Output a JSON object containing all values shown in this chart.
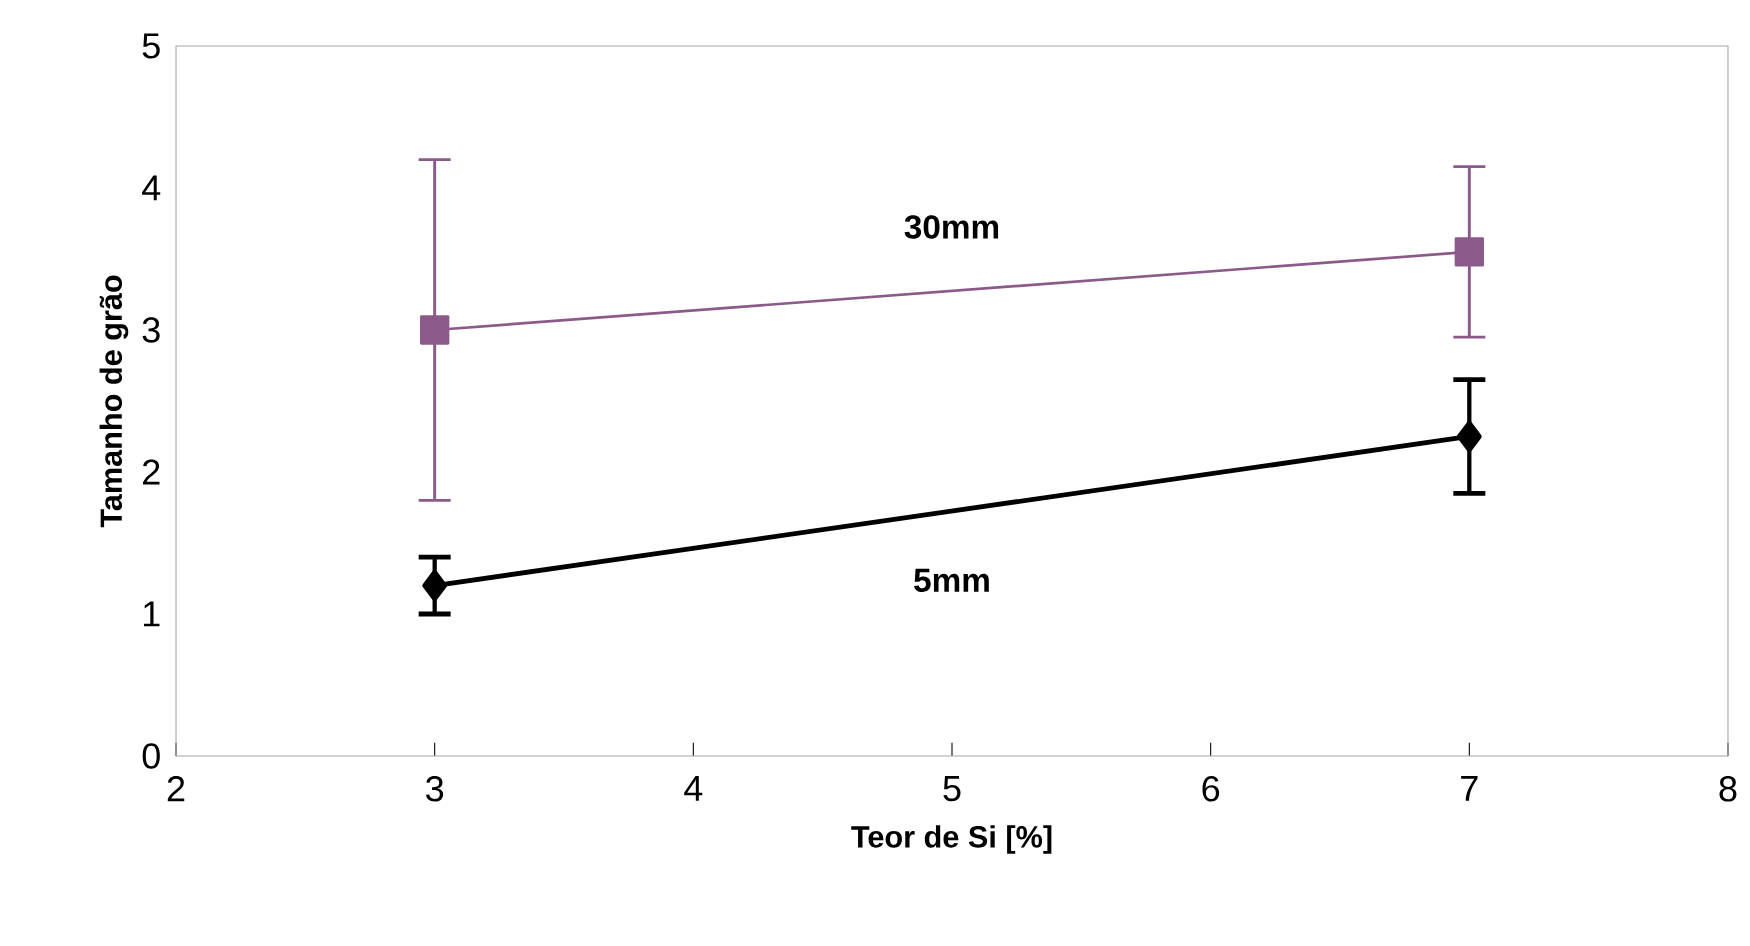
{
  "chart_data": {
    "type": "line",
    "xlabel": "Teor de Si [%]",
    "ylabel": "Tamanho de grão",
    "x": [
      3,
      7
    ],
    "xlim": [
      2,
      8
    ],
    "xticks": [
      2,
      3,
      4,
      5,
      6,
      7,
      8
    ],
    "ylim": [
      0,
      5
    ],
    "yticks": [
      0,
      1,
      2,
      3,
      4,
      5
    ],
    "grid": false,
    "series": [
      {
        "name": "30mm",
        "color": "#8b5a8b",
        "marker": "square",
        "values": [
          3.0,
          3.55
        ],
        "errors": [
          [
            1.8,
            4.2
          ],
          [
            2.95,
            4.15
          ]
        ]
      },
      {
        "name": "5mm",
        "color": "#000000",
        "marker": "diamond",
        "values": [
          1.2,
          2.25
        ],
        "errors": [
          [
            1.0,
            1.4
          ],
          [
            1.85,
            2.65
          ]
        ]
      }
    ]
  }
}
